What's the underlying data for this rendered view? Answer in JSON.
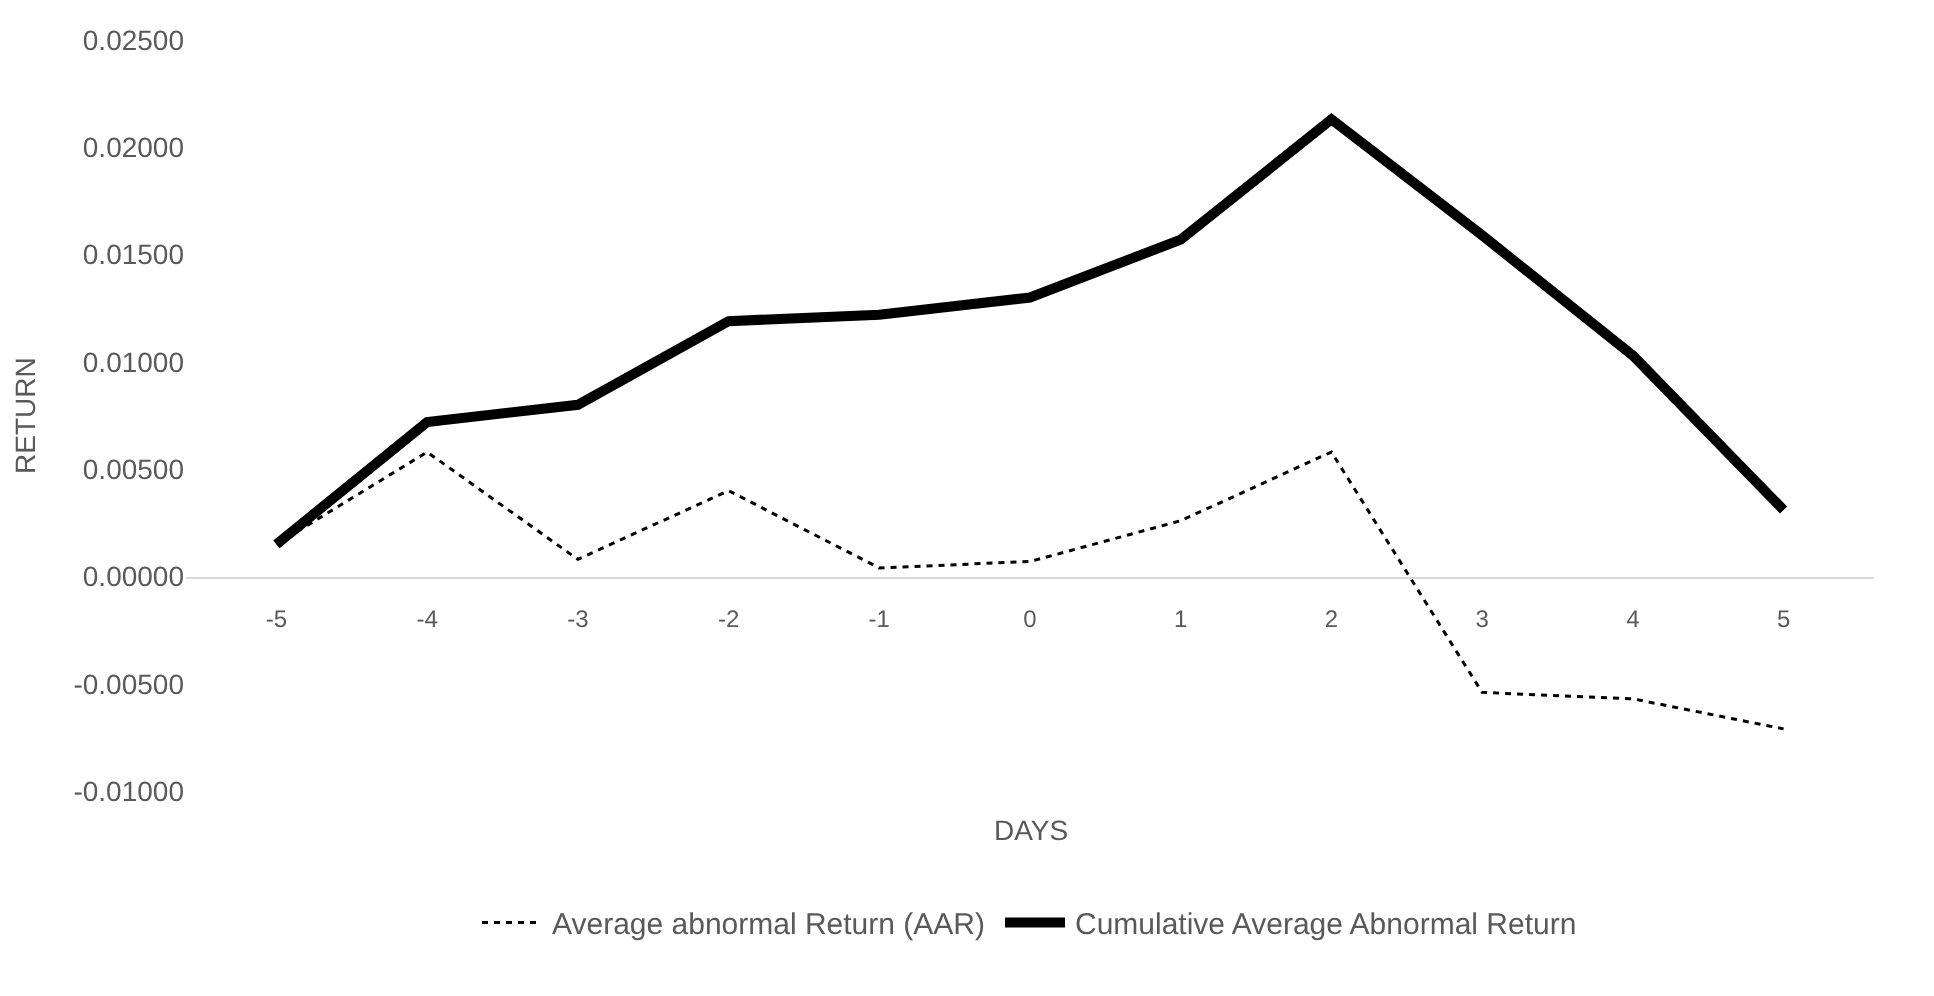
{
  "chart_data": {
    "type": "line",
    "xlabel": "DAYS",
    "ylabel": "RETURN",
    "categories": [
      "-5",
      "-4",
      "-3",
      "-2",
      "-1",
      "0",
      "1",
      "2",
      "3",
      "4",
      "5"
    ],
    "series": [
      {
        "name": "Average abnormal Return (AAR)",
        "color": "#000000",
        "line_style": "dotted",
        "values": [
          0.0015,
          0.0058,
          0.0008,
          0.004,
          0.0004,
          0.0007,
          0.0026,
          0.0058,
          -0.0054,
          -0.0057,
          -0.0071
        ]
      },
      {
        "name": "Cumulative Average Abnormal Return",
        "color": "#000000",
        "line_style": "solid",
        "values": [
          0.0015,
          0.0072,
          0.008,
          0.0119,
          0.0122,
          0.013,
          0.0157,
          0.0213,
          0.0159,
          0.0103,
          0.0031
        ]
      }
    ],
    "ylim": [
      -0.01,
      0.025
    ],
    "yticks": [
      {
        "value": -0.01,
        "label": "-0.01000"
      },
      {
        "value": -0.005,
        "label": "-0.00500"
      },
      {
        "value": 0,
        "label": "0.00000"
      },
      {
        "value": 0.005,
        "label": "0.00500"
      },
      {
        "value": 0.01,
        "label": "0.01000"
      },
      {
        "value": 0.015,
        "label": "0.01500"
      },
      {
        "value": 0.02,
        "label": "0.02000"
      },
      {
        "value": 0.025,
        "label": "0.02500"
      }
    ],
    "legend": "bottom",
    "marker": "none"
  }
}
